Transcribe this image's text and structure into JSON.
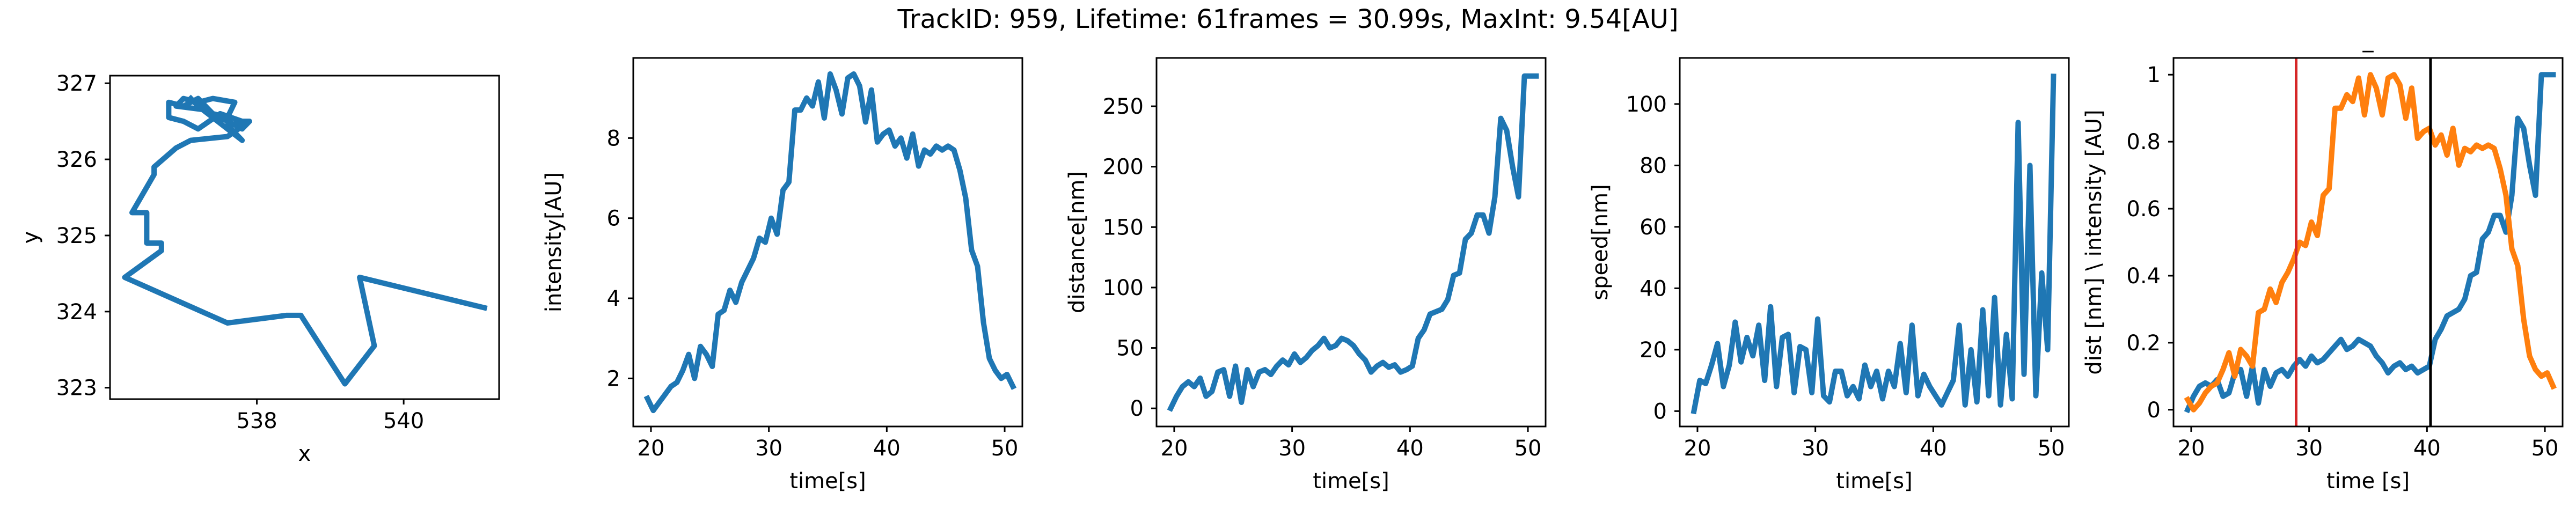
{
  "figure": {
    "suptitle": "TrackID: 959, Lifetime: 61frames = 30.99s, MaxInt: 9.54[AU]"
  },
  "colors": {
    "blue": "#1f77b4",
    "orange": "#ff7f0e",
    "red": "#d62728",
    "black": "#000000"
  },
  "chart_data": [
    {
      "type": "line",
      "title": "",
      "xlabel": "x",
      "ylabel": "y",
      "xlim": [
        536.0,
        541.3
      ],
      "ylim": [
        322.85,
        327.1
      ],
      "xticks": [
        538,
        540
      ],
      "yticks": [
        323,
        324,
        325,
        326,
        327
      ],
      "series": [
        {
          "color": "#1f77b4",
          "x": [
            541.1,
            539.4,
            539.6,
            539.2,
            538.6,
            538.4,
            537.6,
            536.2,
            536.7,
            536.7,
            536.5,
            536.5,
            536.3,
            536.6,
            536.6,
            536.9,
            537.1,
            537.6,
            537.9,
            537.8,
            537.5,
            537.2,
            537.0,
            536.8,
            536.8,
            537.0,
            537.2,
            537.4,
            537.6,
            537.7,
            537.4,
            537.2,
            537.0,
            536.9,
            537.3,
            537.6,
            537.8,
            537.9,
            537.6,
            537.8,
            537.4,
            537.2,
            537.1
          ],
          "y": [
            324.05,
            324.45,
            323.55,
            323.05,
            323.95,
            323.95,
            323.85,
            324.45,
            324.8,
            324.9,
            324.9,
            325.3,
            325.3,
            325.8,
            325.9,
            326.15,
            326.25,
            326.3,
            326.5,
            326.5,
            326.6,
            326.4,
            326.5,
            326.55,
            326.75,
            326.7,
            326.8,
            326.6,
            326.55,
            326.75,
            326.8,
            326.75,
            326.8,
            326.7,
            326.65,
            326.5,
            326.4,
            326.5,
            326.45,
            326.25,
            326.55,
            326.7,
            326.8
          ]
        }
      ]
    },
    {
      "type": "line",
      "title": "",
      "xlabel": "time[s]",
      "ylabel": "intensity[AU]",
      "xlim": [
        18.5,
        51.5
      ],
      "ylim": [
        0.8,
        10.0
      ],
      "xticks": [
        20,
        30,
        40,
        50
      ],
      "yticks": [
        2,
        4,
        6,
        8
      ],
      "series": [
        {
          "color": "#1f77b4",
          "x": [
            19.7,
            20.2,
            20.7,
            21.2,
            21.7,
            22.2,
            22.7,
            23.2,
            23.7,
            24.2,
            24.7,
            25.2,
            25.7,
            26.2,
            26.7,
            27.2,
            27.7,
            28.2,
            28.7,
            29.2,
            29.7,
            30.2,
            30.7,
            31.2,
            31.7,
            32.2,
            32.7,
            33.2,
            33.7,
            34.2,
            34.7,
            35.2,
            35.7,
            36.2,
            36.7,
            37.2,
            37.7,
            38.2,
            38.7,
            39.2,
            39.7,
            40.2,
            40.7,
            41.2,
            41.7,
            42.2,
            42.7,
            43.2,
            43.7,
            44.2,
            44.7,
            45.2,
            45.7,
            46.2,
            46.7,
            47.2,
            47.7,
            48.2,
            48.7,
            49.2,
            49.7,
            50.2,
            50.7
          ],
          "y": [
            1.5,
            1.2,
            1.4,
            1.6,
            1.8,
            1.9,
            2.2,
            2.6,
            2.0,
            2.8,
            2.6,
            2.3,
            3.6,
            3.7,
            4.2,
            3.9,
            4.4,
            4.7,
            5.0,
            5.5,
            5.4,
            6.0,
            5.6,
            6.7,
            6.9,
            8.7,
            8.7,
            9.0,
            8.8,
            9.4,
            8.5,
            9.6,
            9.2,
            8.6,
            9.5,
            9.6,
            9.3,
            8.4,
            9.2,
            7.9,
            8.1,
            8.2,
            7.8,
            8.0,
            7.5,
            8.1,
            7.3,
            7.7,
            7.6,
            7.8,
            7.7,
            7.8,
            7.7,
            7.2,
            6.5,
            5.2,
            4.8,
            3.4,
            2.5,
            2.2,
            2.0,
            2.1,
            1.8
          ]
        }
      ]
    },
    {
      "type": "line",
      "title": "",
      "xlabel": "time[s]",
      "ylabel": "distance[nm]",
      "xlim": [
        18.5,
        51.5
      ],
      "ylim": [
        -15,
        290
      ],
      "xticks": [
        20,
        30,
        40,
        50
      ],
      "yticks": [
        0,
        50,
        100,
        150,
        200,
        250
      ],
      "series": [
        {
          "color": "#1f77b4",
          "x": [
            19.7,
            20.2,
            20.7,
            21.2,
            21.7,
            22.2,
            22.7,
            23.2,
            23.7,
            24.2,
            24.7,
            25.2,
            25.7,
            26.2,
            26.7,
            27.2,
            27.7,
            28.2,
            28.7,
            29.2,
            29.7,
            30.2,
            30.7,
            31.2,
            31.7,
            32.2,
            32.7,
            33.2,
            33.7,
            34.2,
            34.7,
            35.2,
            35.7,
            36.2,
            36.7,
            37.2,
            37.7,
            38.2,
            38.7,
            39.2,
            39.7,
            40.2,
            40.7,
            41.2,
            41.7,
            42.2,
            42.7,
            43.2,
            43.7,
            44.2,
            44.7,
            45.2,
            45.7,
            46.2,
            46.7,
            47.2,
            47.7,
            48.2,
            48.7,
            49.2,
            49.7,
            50.2,
            50.7
          ],
          "y": [
            0,
            10,
            18,
            22,
            18,
            25,
            10,
            14,
            30,
            32,
            10,
            35,
            5,
            32,
            18,
            30,
            32,
            28,
            35,
            40,
            36,
            45,
            38,
            42,
            48,
            52,
            58,
            50,
            52,
            58,
            56,
            52,
            45,
            40,
            30,
            35,
            38,
            34,
            36,
            30,
            32,
            35,
            58,
            65,
            78,
            80,
            82,
            90,
            110,
            112,
            140,
            145,
            160,
            160,
            145,
            175,
            240,
            230,
            200,
            175,
            275,
            275,
            275
          ]
        }
      ]
    },
    {
      "type": "line",
      "title": "",
      "xlabel": "time[s]",
      "ylabel": "speed[nm]",
      "xlim": [
        18.5,
        51.5
      ],
      "ylim": [
        -5,
        115
      ],
      "xticks": [
        20,
        30,
        40,
        50
      ],
      "yticks": [
        0,
        20,
        40,
        60,
        80,
        100
      ],
      "series": [
        {
          "color": "#1f77b4",
          "x": [
            19.7,
            20.2,
            20.7,
            21.2,
            21.7,
            22.2,
            22.7,
            23.2,
            23.7,
            24.2,
            24.7,
            25.2,
            25.7,
            26.2,
            26.7,
            27.2,
            27.7,
            28.2,
            28.7,
            29.2,
            29.7,
            30.2,
            30.7,
            31.2,
            31.7,
            32.2,
            32.7,
            33.2,
            33.7,
            34.2,
            34.7,
            35.2,
            35.7,
            36.2,
            36.7,
            37.2,
            37.7,
            38.2,
            38.7,
            39.2,
            39.7,
            40.2,
            40.7,
            41.2,
            41.7,
            42.2,
            42.7,
            43.2,
            43.7,
            44.2,
            44.7,
            45.2,
            45.7,
            46.2,
            46.7,
            47.2,
            47.7,
            48.2,
            48.7,
            49.2,
            49.7,
            50.2
          ],
          "y": [
            0,
            10,
            9,
            15,
            22,
            8,
            15,
            29,
            16,
            24,
            18,
            28,
            10,
            34,
            8,
            24,
            25,
            6,
            21,
            20,
            6,
            30,
            5,
            3,
            13,
            13,
            5,
            8,
            4,
            15,
            8,
            13,
            4,
            13,
            8,
            22,
            6,
            28,
            5,
            12,
            8,
            5,
            2,
            6,
            10,
            28,
            2,
            20,
            3,
            33,
            5,
            37,
            2,
            25,
            4,
            94,
            12,
            80,
            5,
            45,
            20,
            109
          ]
        }
      ]
    },
    {
      "type": "line",
      "title": "_",
      "xlabel": "time [s]",
      "ylabel": "dist [nm] \\ intensity [AU]",
      "xlim": [
        18.5,
        51.5
      ],
      "ylim": [
        -0.05,
        1.05
      ],
      "xticks": [
        20,
        30,
        40,
        50
      ],
      "yticks": [
        0.0,
        0.2,
        0.4,
        0.6,
        0.8,
        1.0
      ],
      "vlines": [
        {
          "x": 28.9,
          "color": "#d62728"
        },
        {
          "x": 40.3,
          "color": "#000000"
        }
      ],
      "series": [
        {
          "color": "#1f77b4",
          "x": [
            19.7,
            20.2,
            20.7,
            21.2,
            21.7,
            22.2,
            22.7,
            23.2,
            23.7,
            24.2,
            24.7,
            25.2,
            25.7,
            26.2,
            26.7,
            27.2,
            27.7,
            28.2,
            28.7,
            29.2,
            29.7,
            30.2,
            30.7,
            31.2,
            31.7,
            32.2,
            32.7,
            33.2,
            33.7,
            34.2,
            34.7,
            35.2,
            35.7,
            36.2,
            36.7,
            37.2,
            37.7,
            38.2,
            38.7,
            39.2,
            39.7,
            40.2,
            40.7,
            41.2,
            41.7,
            42.2,
            42.7,
            43.2,
            43.7,
            44.2,
            44.7,
            45.2,
            45.7,
            46.2,
            46.7,
            47.2,
            47.7,
            48.2,
            48.7,
            49.2,
            49.7,
            50.2,
            50.7
          ],
          "y": [
            0.0,
            0.04,
            0.07,
            0.08,
            0.07,
            0.09,
            0.04,
            0.05,
            0.11,
            0.12,
            0.04,
            0.13,
            0.02,
            0.12,
            0.07,
            0.11,
            0.12,
            0.1,
            0.13,
            0.15,
            0.13,
            0.16,
            0.14,
            0.15,
            0.17,
            0.19,
            0.21,
            0.18,
            0.19,
            0.21,
            0.2,
            0.19,
            0.16,
            0.14,
            0.11,
            0.13,
            0.14,
            0.12,
            0.13,
            0.11,
            0.12,
            0.13,
            0.21,
            0.24,
            0.28,
            0.29,
            0.3,
            0.33,
            0.4,
            0.41,
            0.51,
            0.53,
            0.58,
            0.58,
            0.53,
            0.64,
            0.87,
            0.84,
            0.73,
            0.64,
            1.0,
            1.0,
            1.0
          ]
        },
        {
          "color": "#ff7f0e",
          "x": [
            19.7,
            20.2,
            20.7,
            21.2,
            21.7,
            22.2,
            22.7,
            23.2,
            23.7,
            24.2,
            24.7,
            25.2,
            25.7,
            26.2,
            26.7,
            27.2,
            27.7,
            28.2,
            28.7,
            29.2,
            29.7,
            30.2,
            30.7,
            31.2,
            31.7,
            32.2,
            32.7,
            33.2,
            33.7,
            34.2,
            34.7,
            35.2,
            35.7,
            36.2,
            36.7,
            37.2,
            37.7,
            38.2,
            38.7,
            39.2,
            39.7,
            40.2,
            40.7,
            41.2,
            41.7,
            42.2,
            42.7,
            43.2,
            43.7,
            44.2,
            44.7,
            45.2,
            45.7,
            46.2,
            46.7,
            47.2,
            47.7,
            48.2,
            48.7,
            49.2,
            49.7,
            50.2,
            50.7
          ],
          "y": [
            0.03,
            0.0,
            0.02,
            0.05,
            0.07,
            0.08,
            0.12,
            0.17,
            0.1,
            0.18,
            0.16,
            0.13,
            0.29,
            0.3,
            0.36,
            0.32,
            0.38,
            0.41,
            0.45,
            0.5,
            0.49,
            0.56,
            0.52,
            0.64,
            0.66,
            0.9,
            0.9,
            0.94,
            0.92,
            0.99,
            0.88,
            1.0,
            0.96,
            0.88,
            0.99,
            1.0,
            0.97,
            0.87,
            0.96,
            0.81,
            0.83,
            0.84,
            0.79,
            0.82,
            0.76,
            0.84,
            0.73,
            0.78,
            0.77,
            0.79,
            0.78,
            0.79,
            0.78,
            0.72,
            0.64,
            0.48,
            0.43,
            0.27,
            0.16,
            0.12,
            0.1,
            0.11,
            0.07
          ]
        }
      ]
    }
  ]
}
